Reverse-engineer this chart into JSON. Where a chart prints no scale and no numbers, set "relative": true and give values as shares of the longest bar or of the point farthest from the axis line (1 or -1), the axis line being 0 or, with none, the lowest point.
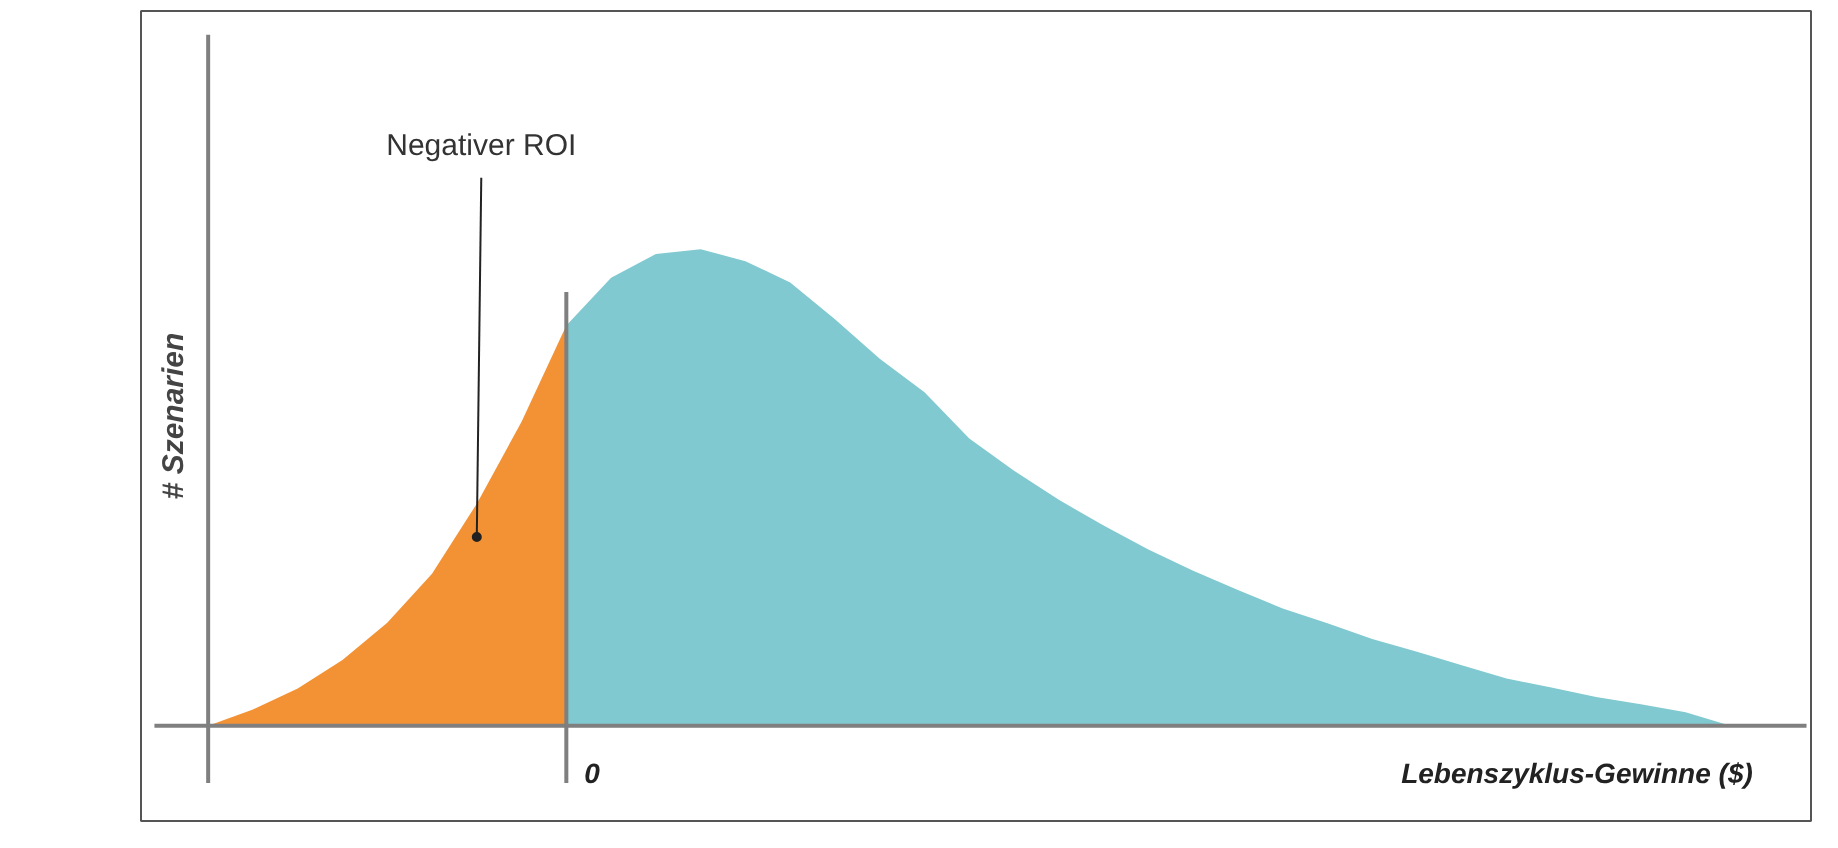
{
  "chart_data": {
    "type": "area",
    "relative": true,
    "xlabel": "Lebenszyklus-Gewinne ($)",
    "ylabel": "# Szenarien",
    "categories": [
      null,
      null,
      null,
      null,
      null,
      null,
      null,
      null,
      null,
      null,
      null,
      null,
      null,
      null,
      null,
      null,
      null,
      null,
      null,
      null,
      null,
      null,
      null,
      null,
      null,
      null,
      null,
      null,
      null,
      null,
      null,
      null,
      null,
      null,
      null
    ],
    "series": [
      {
        "color": "#f39234",
        "values": [
          0,
          0.034,
          0.078,
          0.138,
          0.216,
          0.319,
          0.466,
          0.638,
          0.84,
          null,
          null,
          null,
          null,
          null,
          null,
          null,
          null,
          null,
          null,
          null,
          null,
          null,
          null,
          null,
          null,
          null,
          null,
          null,
          null,
          null,
          null,
          null,
          null,
          null,
          null
        ]
      },
      {
        "color": "#80c9d0",
        "values": [
          null,
          null,
          null,
          null,
          null,
          null,
          null,
          null,
          0.84,
          0.94,
          0.99,
          1,
          0.975,
          0.93,
          0.853,
          0.77,
          0.7,
          0.603,
          0.535,
          0.474,
          0.42,
          0.37,
          0.325,
          0.285,
          0.246,
          0.215,
          0.182,
          0.155,
          0.127,
          0.099,
          0.08,
          0.06,
          0.045,
          0.028,
          0
        ]
      }
    ],
    "annotations": [
      "0",
      "Negativer ROI"
    ]
  }
}
